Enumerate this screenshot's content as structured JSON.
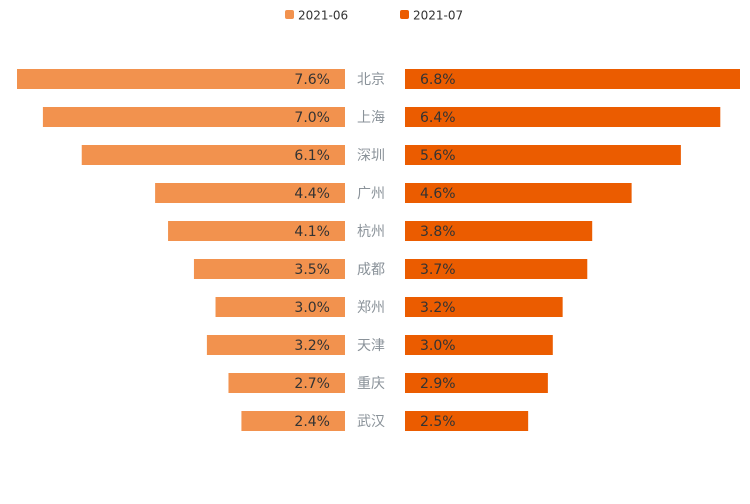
{
  "chart_data": {
    "type": "bar",
    "orientation": "horizontal-butterfly",
    "categories": [
      "北京",
      "上海",
      "深圳",
      "广州",
      "杭州",
      "成都",
      "郑州",
      "天津",
      "重庆",
      "武汉"
    ],
    "series": [
      {
        "name": "2021-06",
        "color": "#f2924e",
        "values": [
          7.6,
          7.0,
          6.1,
          4.4,
          4.1,
          3.5,
          3.0,
          3.2,
          2.7,
          2.4
        ],
        "labels": [
          "7.6%",
          "7.0%",
          "6.1%",
          "4.4%",
          "4.1%",
          "3.5%",
          "3.0%",
          "3.2%",
          "2.7%",
          "2.4%"
        ]
      },
      {
        "name": "2021-07",
        "color": "#eb5c00",
        "values": [
          6.8,
          6.4,
          5.6,
          4.6,
          3.8,
          3.7,
          3.2,
          3.0,
          2.9,
          2.5
        ],
        "labels": [
          "6.8%",
          "6.4%",
          "5.6%",
          "4.6%",
          "3.8%",
          "3.7%",
          "3.2%",
          "3.0%",
          "2.9%",
          "2.5%"
        ]
      }
    ],
    "legend_position": "top-center",
    "grid": false,
    "unit": "%"
  }
}
